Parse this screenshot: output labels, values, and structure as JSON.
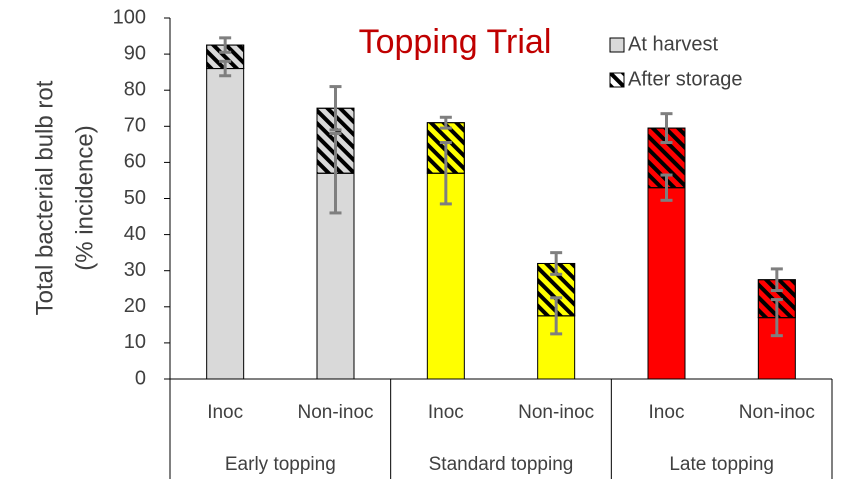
{
  "chart_data": {
    "type": "stacked_bar",
    "title": "Topping Trial",
    "y_label": [
      "Total bacterial bulb rot",
      "(% incidence)"
    ],
    "categories": [
      "Inoc",
      "Non-inoc",
      "Inoc",
      "Non-inoc",
      "Inoc",
      "Non-inoc"
    ],
    "groups": [
      "Early topping",
      "Standard topping",
      "Late topping"
    ],
    "bar_colors": [
      "#d9d9d9",
      "#d9d9d9",
      "#ffff00",
      "#ffff00",
      "#ff0000",
      "#ff0000"
    ],
    "series": [
      {
        "name": "At harvest",
        "color": "#d9d9d9",
        "values": [
          86,
          57,
          57,
          17.5,
          53,
          17
        ],
        "errors": [
          2,
          11,
          8.5,
          5,
          3.5,
          5
        ]
      },
      {
        "name": "After storage",
        "color": "#ffffff",
        "hatch": true,
        "values": [
          6.5,
          18,
          14,
          14.5,
          16.5,
          10.5
        ],
        "errors": [
          2,
          6,
          1.5,
          3,
          4,
          3
        ]
      }
    ],
    "ylim": [
      0,
      100
    ],
    "yticks": [
      0,
      10,
      20,
      30,
      40,
      50,
      60,
      70,
      80,
      90,
      100
    ],
    "legend": "upper right",
    "error_color": "#7f7f7f"
  }
}
